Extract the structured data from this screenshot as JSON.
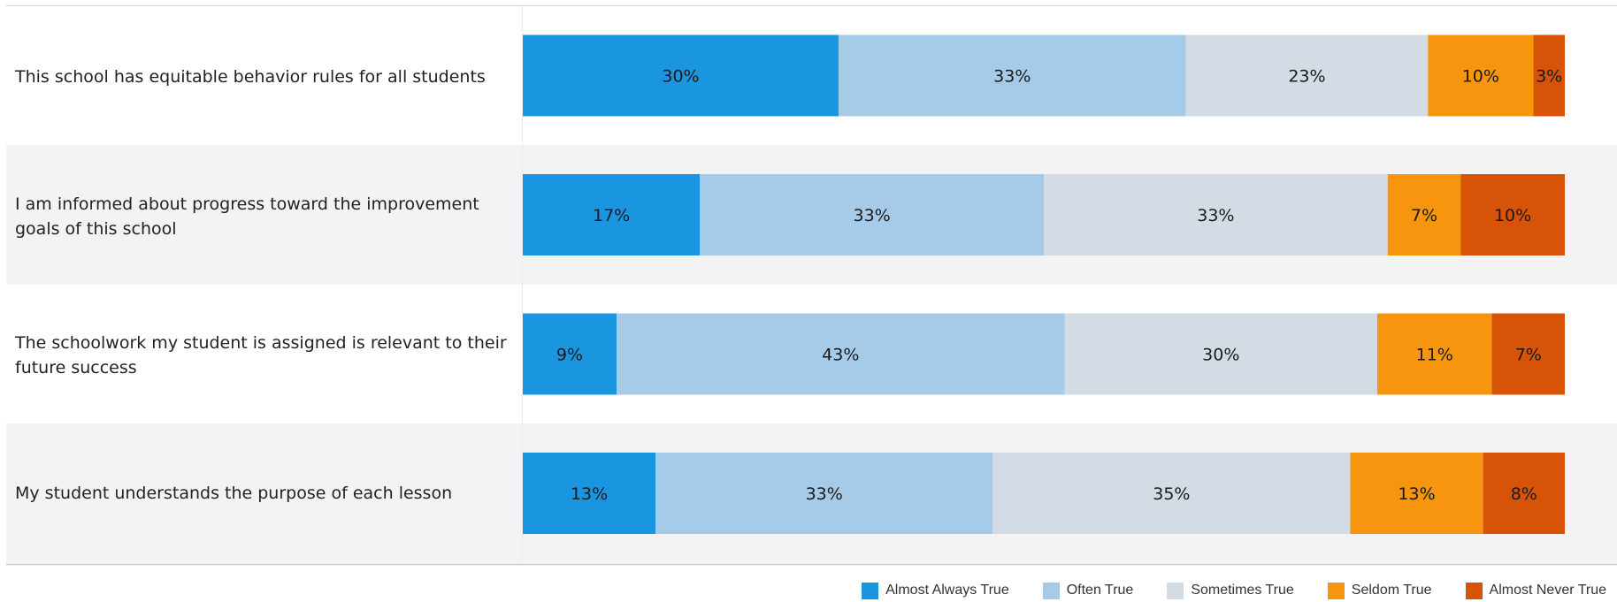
{
  "chart_data": {
    "type": "bar",
    "orientation": "horizontal",
    "stacked": true,
    "categories": [
      "This school has equitable behavior rules for all students",
      "I am informed about progress toward the improvement goals of this school",
      "The schoolwork my student is assigned is relevant to their future success",
      "My student understands the purpose of each lesson"
    ],
    "series": [
      {
        "name": "Almost Always True",
        "color": "#1a96e0",
        "values": [
          30,
          17,
          9,
          13
        ],
        "labels": [
          "30%",
          "17%",
          "9%",
          "13%"
        ]
      },
      {
        "name": "Often True",
        "color": "#a5cbe8",
        "values": [
          33,
          33,
          43,
          33
        ],
        "labels": [
          "33%",
          "33%",
          "43%",
          "33%"
        ]
      },
      {
        "name": "Sometimes True",
        "color": "#d3dbe4",
        "values": [
          23,
          33,
          30,
          35
        ],
        "labels": [
          "23%",
          "33%",
          "30%",
          "35%"
        ]
      },
      {
        "name": "Seldom True",
        "color": "#f7950e",
        "values": [
          10,
          7,
          11,
          13
        ],
        "labels": [
          "10%",
          "7%",
          "11%",
          "13%"
        ]
      },
      {
        "name": "Almost Never True",
        "color": "#d65307",
        "values": [
          3,
          10,
          7,
          8
        ],
        "labels": [
          "3%",
          "10%",
          "7%",
          "8%"
        ]
      }
    ],
    "xlim": [
      0,
      100
    ],
    "legend_position": "bottom-right",
    "row_band_colors": [
      "#ffffff",
      "#f3f3f3"
    ]
  }
}
